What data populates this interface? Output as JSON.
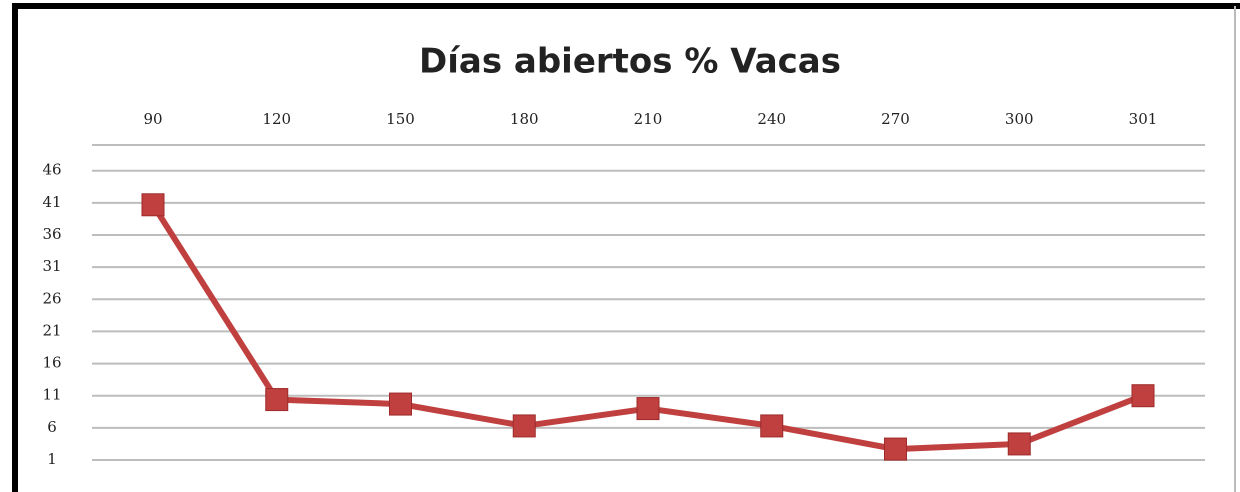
{
  "chart_data": {
    "type": "line",
    "title": "Días abiertos % Vacas",
    "categories": [
      "90",
      "120",
      "150",
      "180",
      "210",
      "240",
      "270",
      "300",
      "301"
    ],
    "series": [
      {
        "name": "Vacas",
        "color": "#c0403f",
        "values": [
          40.7,
          10.4,
          9.7,
          6.3,
          9,
          6.3,
          2.7,
          3.5,
          11
        ]
      }
    ],
    "ylim": [
      1,
      50
    ],
    "yticks": [
      1,
      6,
      11,
      16,
      21,
      26,
      31,
      36,
      41,
      46
    ],
    "grid": true
  }
}
